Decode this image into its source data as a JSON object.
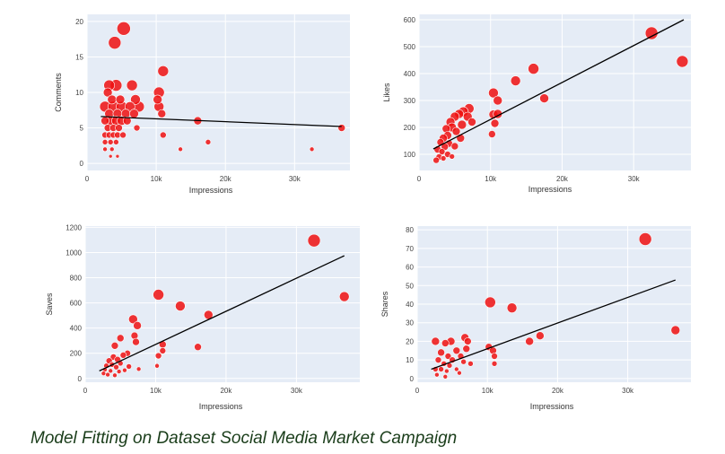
{
  "caption": "Model Fitting on Dataset Social Media Market Campaign",
  "colors": {
    "plot_bg": "#e5ecf6",
    "grid": "#ffffff",
    "marker": "#ee1111",
    "marker_edge": "#ffffff",
    "fit_line": "#000000"
  },
  "chart_data": [
    {
      "type": "scatter",
      "xlabel": "Impressions",
      "ylabel": "Comments",
      "xlim": [
        0,
        38000
      ],
      "ylim": [
        -1,
        21
      ],
      "x_ticks": [
        {
          "v": 0,
          "label": "0"
        },
        {
          "v": 10000,
          "label": "10k"
        },
        {
          "v": 20000,
          "label": "20k"
        },
        {
          "v": 30000,
          "label": "30k"
        }
      ],
      "y_ticks": [
        {
          "v": 0,
          "label": "0"
        },
        {
          "v": 5,
          "label": "5"
        },
        {
          "v": 10,
          "label": "10"
        },
        {
          "v": 15,
          "label": "15"
        },
        {
          "v": 20,
          "label": "20"
        }
      ],
      "fit_line": [
        [
          2000,
          6.6
        ],
        [
          36800,
          5.2
        ]
      ],
      "points": [
        [
          5300,
          19,
          7.5
        ],
        [
          4000,
          17,
          7
        ],
        [
          11000,
          13,
          6
        ],
        [
          3200,
          11,
          6
        ],
        [
          4200,
          11,
          6.5
        ],
        [
          6500,
          11,
          6
        ],
        [
          10400,
          10,
          6
        ],
        [
          3000,
          10,
          5
        ],
        [
          3600,
          9,
          5
        ],
        [
          4800,
          9,
          5
        ],
        [
          7000,
          9,
          5.5
        ],
        [
          10200,
          9,
          5
        ],
        [
          2600,
          8,
          6
        ],
        [
          3800,
          8,
          6
        ],
        [
          5000,
          8,
          6
        ],
        [
          6200,
          8,
          5.5
        ],
        [
          7500,
          8,
          6
        ],
        [
          10400,
          8,
          5.5
        ],
        [
          3200,
          7,
          5
        ],
        [
          4400,
          7,
          5
        ],
        [
          5600,
          7,
          5
        ],
        [
          6800,
          7,
          5
        ],
        [
          10800,
          7,
          4.5
        ],
        [
          2600,
          6,
          4.5
        ],
        [
          3400,
          6,
          5
        ],
        [
          4200,
          6,
          5
        ],
        [
          5000,
          6,
          5
        ],
        [
          5800,
          6,
          4.5
        ],
        [
          16000,
          6,
          4.5
        ],
        [
          3000,
          5,
          4
        ],
        [
          3800,
          5,
          4
        ],
        [
          4600,
          5,
          4
        ],
        [
          7200,
          5,
          3.5
        ],
        [
          2600,
          4,
          3.5
        ],
        [
          3200,
          4,
          3.5
        ],
        [
          3800,
          4,
          3.5
        ],
        [
          4400,
          4,
          3.5
        ],
        [
          5200,
          4,
          3.5
        ],
        [
          11000,
          4,
          3.5
        ],
        [
          2600,
          3,
          3
        ],
        [
          3400,
          3,
          3
        ],
        [
          4200,
          3,
          3
        ],
        [
          17500,
          3,
          3
        ],
        [
          2600,
          2,
          2.5
        ],
        [
          3600,
          2,
          2.5
        ],
        [
          13500,
          2,
          2.5
        ],
        [
          32500,
          2,
          2.5
        ],
        [
          3400,
          1,
          2
        ],
        [
          4400,
          1,
          2
        ],
        [
          36800,
          5,
          4
        ]
      ]
    },
    {
      "type": "scatter",
      "xlabel": "Impressions",
      "ylabel": "Likes",
      "xlim": [
        0,
        38000
      ],
      "ylim": [
        40,
        620
      ],
      "x_ticks": [
        {
          "v": 0,
          "label": "0"
        },
        {
          "v": 10000,
          "label": "10k"
        },
        {
          "v": 20000,
          "label": "20k"
        },
        {
          "v": 30000,
          "label": "30k"
        }
      ],
      "y_ticks": [
        {
          "v": 100,
          "label": "100"
        },
        {
          "v": 200,
          "label": "200"
        },
        {
          "v": 300,
          "label": "300"
        },
        {
          "v": 400,
          "label": "400"
        },
        {
          "v": 500,
          "label": "500"
        },
        {
          "v": 600,
          "label": "600"
        }
      ],
      "fit_line": [
        [
          2000,
          120
        ],
        [
          37000,
          600
        ]
      ],
      "points": [
        [
          32500,
          550,
          7
        ],
        [
          36800,
          445,
          6.5
        ],
        [
          16000,
          418,
          6
        ],
        [
          13500,
          373,
          5.5
        ],
        [
          10400,
          328,
          5.5
        ],
        [
          17500,
          308,
          5
        ],
        [
          11000,
          300,
          5
        ],
        [
          10400,
          248,
          5
        ],
        [
          11000,
          250,
          5
        ],
        [
          10600,
          215,
          4.5
        ],
        [
          10200,
          175,
          4
        ],
        [
          7000,
          270,
          5.5
        ],
        [
          6200,
          258,
          5.5
        ],
        [
          5600,
          250,
          5
        ],
        [
          5000,
          240,
          5
        ],
        [
          4400,
          220,
          5
        ],
        [
          6800,
          240,
          5
        ],
        [
          7400,
          220,
          4.5
        ],
        [
          6000,
          210,
          5
        ],
        [
          4600,
          200,
          5
        ],
        [
          3800,
          195,
          4.5
        ],
        [
          5200,
          185,
          4.5
        ],
        [
          4000,
          170,
          4.5
        ],
        [
          3400,
          160,
          4.5
        ],
        [
          5800,
          160,
          4.5
        ],
        [
          3000,
          145,
          4
        ],
        [
          4200,
          140,
          4
        ],
        [
          3600,
          128,
          4
        ],
        [
          5000,
          130,
          4
        ],
        [
          2600,
          118,
          4
        ],
        [
          3200,
          110,
          3.5
        ],
        [
          4000,
          100,
          3.5
        ],
        [
          2800,
          90,
          3.5
        ],
        [
          2400,
          78,
          3.5
        ],
        [
          3400,
          85,
          3
        ],
        [
          4600,
          92,
          3
        ]
      ]
    },
    {
      "type": "scatter",
      "xlabel": "Impressions",
      "ylabel": "Saves",
      "xlim": [
        0,
        39000
      ],
      "ylim": [
        -30,
        1210
      ],
      "x_ticks": [
        {
          "v": 0,
          "label": "0"
        },
        {
          "v": 10000,
          "label": "10k"
        },
        {
          "v": 20000,
          "label": "20k"
        },
        {
          "v": 30000,
          "label": "30k"
        }
      ],
      "y_ticks": [
        {
          "v": 0,
          "label": "0"
        },
        {
          "v": 200,
          "label": "200"
        },
        {
          "v": 400,
          "label": "400"
        },
        {
          "v": 600,
          "label": "600"
        },
        {
          "v": 800,
          "label": "800"
        },
        {
          "v": 1000,
          "label": "1000"
        },
        {
          "v": 1200,
          "label": "1200"
        }
      ],
      "fit_line": [
        [
          2000,
          60
        ],
        [
          36800,
          975
        ]
      ],
      "points": [
        [
          32500,
          1095,
          7
        ],
        [
          36800,
          650,
          5.5
        ],
        [
          10400,
          665,
          6
        ],
        [
          13500,
          575,
          5.5
        ],
        [
          17500,
          505,
          5
        ],
        [
          6800,
          470,
          5
        ],
        [
          7400,
          420,
          4.5
        ],
        [
          5000,
          320,
          4
        ],
        [
          7000,
          340,
          4
        ],
        [
          7200,
          290,
          4
        ],
        [
          11000,
          270,
          4
        ],
        [
          11000,
          220,
          3.5
        ],
        [
          16000,
          250,
          4
        ],
        [
          4200,
          260,
          4
        ],
        [
          10400,
          180,
          3.5
        ],
        [
          6000,
          200,
          3.5
        ],
        [
          5400,
          185,
          3.5
        ],
        [
          4000,
          170,
          3.5
        ],
        [
          4600,
          150,
          3.5
        ],
        [
          3400,
          140,
          3.5
        ],
        [
          5000,
          120,
          3
        ],
        [
          3800,
          110,
          3
        ],
        [
          3000,
          100,
          3
        ],
        [
          4400,
          90,
          3
        ],
        [
          6200,
          95,
          3
        ],
        [
          2800,
          70,
          2.5
        ],
        [
          3600,
          60,
          2.5
        ],
        [
          4800,
          55,
          2.5
        ],
        [
          5600,
          65,
          2.5
        ],
        [
          2600,
          40,
          2.5
        ],
        [
          3200,
          30,
          2.5
        ],
        [
          4200,
          25,
          2.5
        ],
        [
          7600,
          75,
          2.5
        ],
        [
          10200,
          100,
          2.5
        ]
      ]
    },
    {
      "type": "scatter",
      "xlabel": "Impressions",
      "ylabel": "Shares",
      "xlim": [
        0,
        39000
      ],
      "ylim": [
        -2,
        82
      ],
      "x_ticks": [
        {
          "v": 0,
          "label": "0"
        },
        {
          "v": 10000,
          "label": "10k"
        },
        {
          "v": 20000,
          "label": "20k"
        },
        {
          "v": 30000,
          "label": "30k"
        }
      ],
      "y_ticks": [
        {
          "v": 0,
          "label": "0"
        },
        {
          "v": 10,
          "label": "10"
        },
        {
          "v": 20,
          "label": "20"
        },
        {
          "v": 30,
          "label": "30"
        },
        {
          "v": 40,
          "label": "40"
        },
        {
          "v": 50,
          "label": "50"
        },
        {
          "v": 60,
          "label": "60"
        },
        {
          "v": 70,
          "label": "70"
        },
        {
          "v": 80,
          "label": "80"
        }
      ],
      "fit_line": [
        [
          2000,
          5
        ],
        [
          36800,
          53
        ]
      ],
      "points": [
        [
          32500,
          75,
          7
        ],
        [
          36800,
          26,
          5
        ],
        [
          10400,
          41,
          6
        ],
        [
          13500,
          38,
          5.5
        ],
        [
          17500,
          23,
          4.5
        ],
        [
          16000,
          20,
          4.5
        ],
        [
          2600,
          20,
          4.5
        ],
        [
          4800,
          20,
          4.5
        ],
        [
          4000,
          19,
          4
        ],
        [
          6800,
          22,
          4.5
        ],
        [
          7200,
          20,
          4
        ],
        [
          10200,
          17,
          4
        ],
        [
          10800,
          15,
          4
        ],
        [
          11000,
          12,
          3.5
        ],
        [
          11000,
          8,
          3
        ],
        [
          3400,
          14,
          4
        ],
        [
          5600,
          15,
          4
        ],
        [
          7000,
          16,
          4
        ],
        [
          6200,
          12,
          3.5
        ],
        [
          4400,
          12,
          3.5
        ],
        [
          3000,
          10,
          3.5
        ],
        [
          5000,
          10,
          3.5
        ],
        [
          6600,
          9,
          3
        ],
        [
          3800,
          8,
          3
        ],
        [
          4600,
          7,
          3
        ],
        [
          7600,
          8,
          3
        ],
        [
          2600,
          5,
          3
        ],
        [
          3400,
          5,
          3
        ],
        [
          4200,
          4,
          2.5
        ],
        [
          5600,
          5,
          2.5
        ],
        [
          2800,
          2,
          2.5
        ],
        [
          4000,
          1,
          2.5
        ],
        [
          6000,
          3,
          2.5
        ]
      ]
    }
  ]
}
